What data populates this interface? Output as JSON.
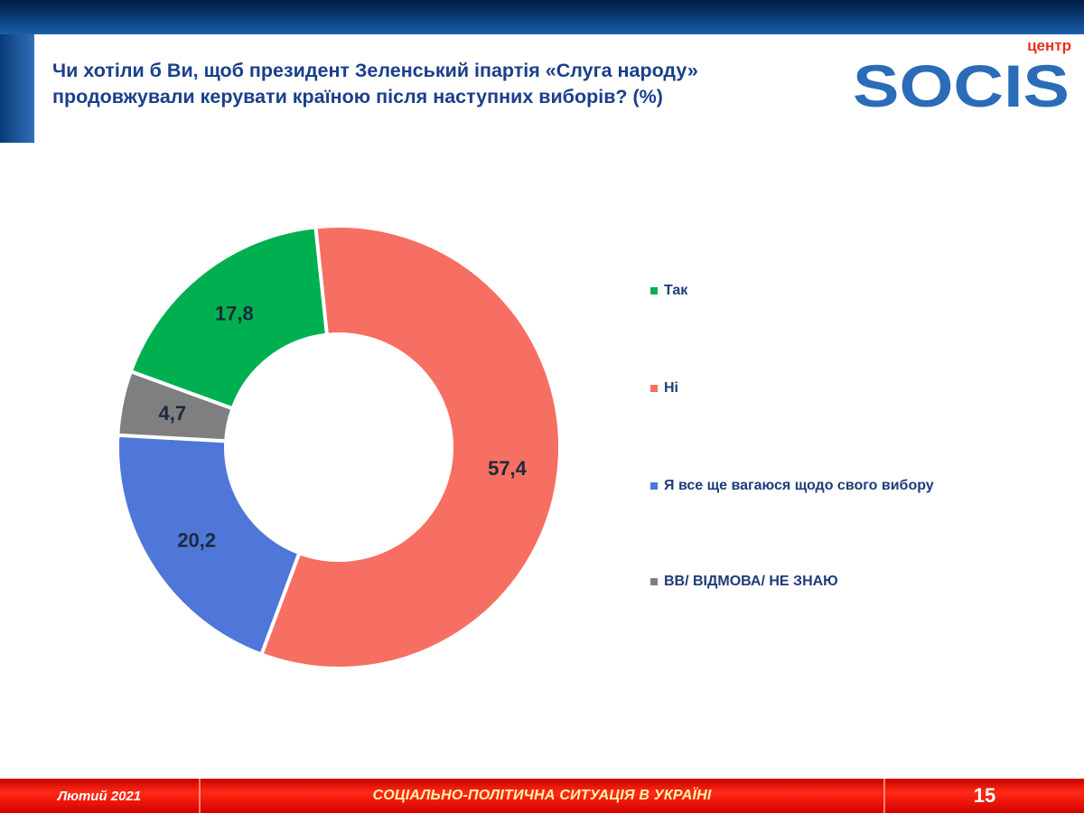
{
  "header": {
    "title_line1": "Чи хотіли б Ви, щоб президент Зеленський іпартія «Слуга народу»",
    "title_line2": "продовжували керувати країною після наступних виборів? (%)"
  },
  "logo": {
    "small_text": "центр",
    "main_text": "SOCIS",
    "color": "#2b6cb8",
    "accent": "#e8301c"
  },
  "chart_data": {
    "type": "pie",
    "donut": true,
    "categories": [
      "Так",
      "Ні",
      "Я все ще вагаюся щодо свого вибору",
      "ВВ/ ВІДМОВА/ НЕ ЗНАЮ"
    ],
    "values": [
      17.8,
      57.4,
      20.2,
      4.7
    ],
    "labels": [
      "17,8",
      "57,4",
      "20,2",
      "4,7"
    ],
    "colors": [
      "#00b050",
      "#f66f62",
      "#4f77d9",
      "#7f7f7f"
    ],
    "legend_text_colors": [
      "#1f3b7a",
      "#1f3b7a",
      "#1f3b7a",
      "#1f3b7a"
    ],
    "legend_position": "right"
  },
  "footer": {
    "date": "Лютий 2021",
    "topic": "СОЦІАЛЬНО-ПОЛІТИЧНА СИТУАЦІЯ  В УКРАЇНІ",
    "page": "15"
  }
}
